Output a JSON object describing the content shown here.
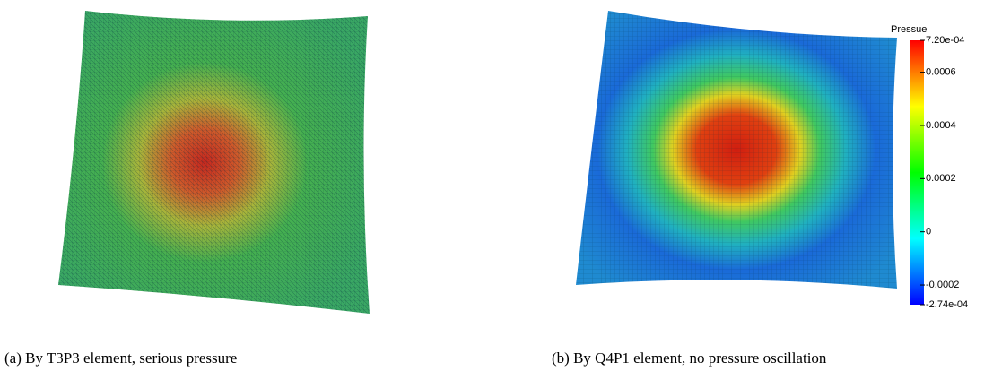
{
  "panels": [
    {
      "caption": "(a) By T3P3 element, serious pressure"
    },
    {
      "caption": "(b) By Q4P1 element, no pressure oscillation"
    }
  ],
  "colorbar": {
    "title": "Pressue",
    "range": [
      -0.000274,
      0.00072
    ],
    "ticks": [
      {
        "value": 0.00072,
        "label": "7.20e-04"
      },
      {
        "value": 0.0006,
        "label": "0.0006"
      },
      {
        "value": 0.0004,
        "label": "0.0004"
      },
      {
        "value": 0.0002,
        "label": "0.0002"
      },
      0,
      {
        "value": -0.0002,
        "label": "-0.0002"
      },
      {
        "value": -0.000274,
        "label": "-2.74e-04"
      }
    ]
  }
}
